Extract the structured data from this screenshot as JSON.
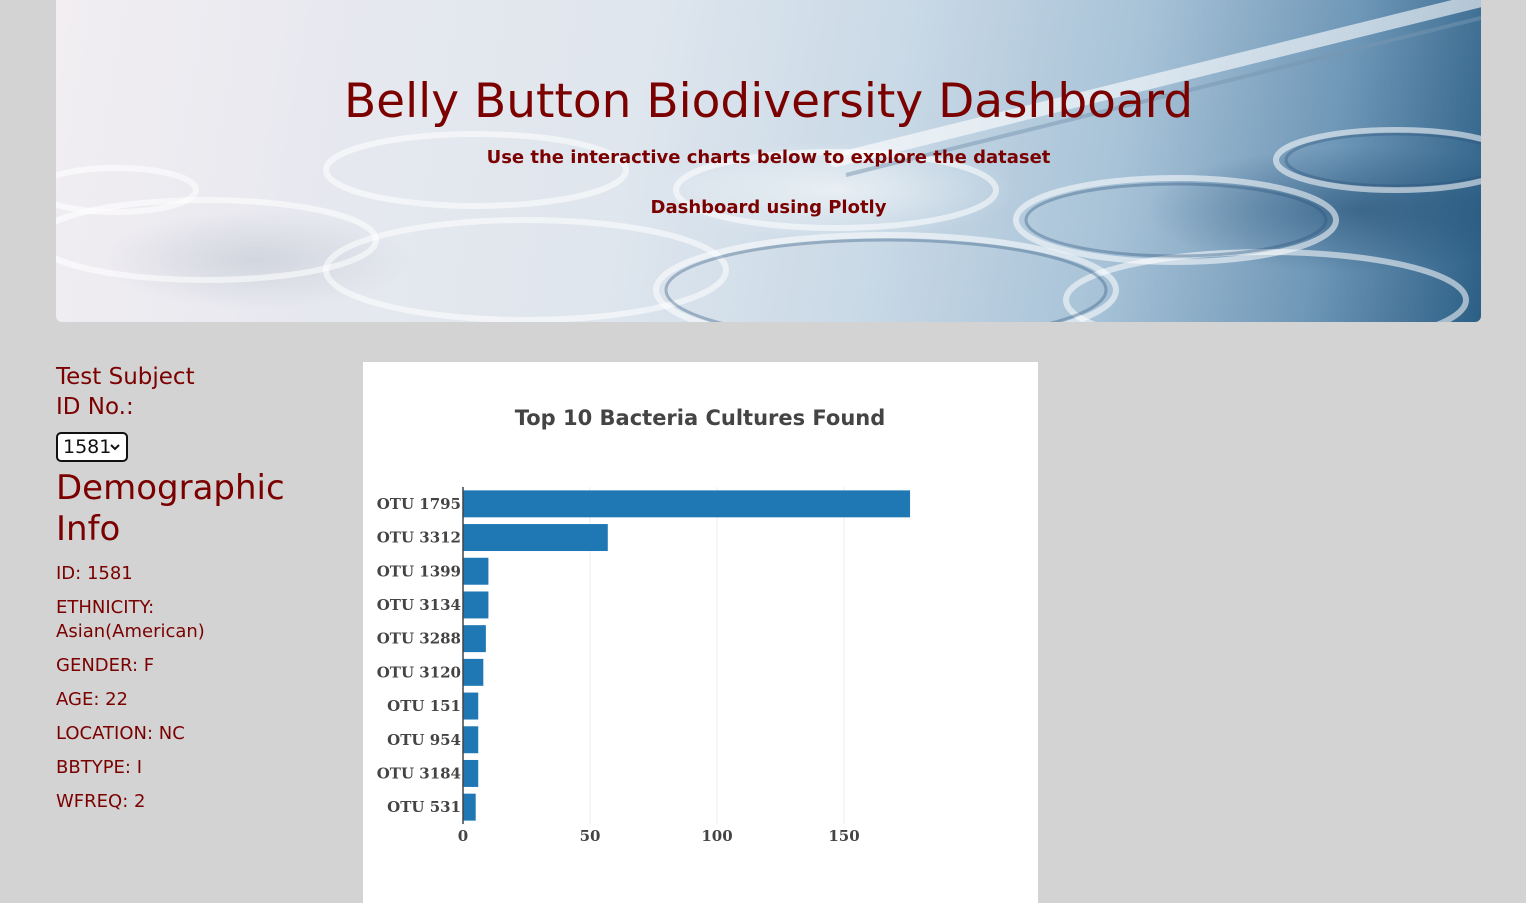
{
  "header": {
    "title": "Belly Button Biodiversity Dashboard",
    "subtitle": "Use the interactive charts below to explore the dataset",
    "tagline": "Dashboard using Plotly"
  },
  "selector": {
    "label": "Test Subject ID No.:",
    "selected_value": "1581"
  },
  "demographics": {
    "title": "Demographic Info",
    "rows": [
      "ID: 1581",
      "ETHNICITY: Asian(American)",
      "GENDER: F",
      "AGE: 22",
      "LOCATION: NC",
      "BBTYPE: I",
      "WFREQ: 2"
    ]
  },
  "colors": {
    "accent_text": "#7b0000",
    "bar": "#1f77b4",
    "page_bg": "#d3d3d3"
  },
  "chart_data": {
    "type": "bar",
    "orientation": "horizontal",
    "title": "Top 10 Bacteria Cultures Found",
    "categories": [
      "OTU 1795",
      "OTU 3312",
      "OTU 1399",
      "OTU 3134",
      "OTU 3288",
      "OTU 3120",
      "OTU 151",
      "OTU 954",
      "OTU 3184",
      "OTU 531"
    ],
    "values": [
      176,
      57,
      10,
      10,
      9,
      8,
      6,
      6,
      6,
      5
    ],
    "xlim": [
      0,
      187
    ],
    "x_ticks": [
      0,
      50,
      100,
      150
    ],
    "xlabel": "",
    "ylabel": "",
    "grid": true,
    "legend": "none"
  }
}
